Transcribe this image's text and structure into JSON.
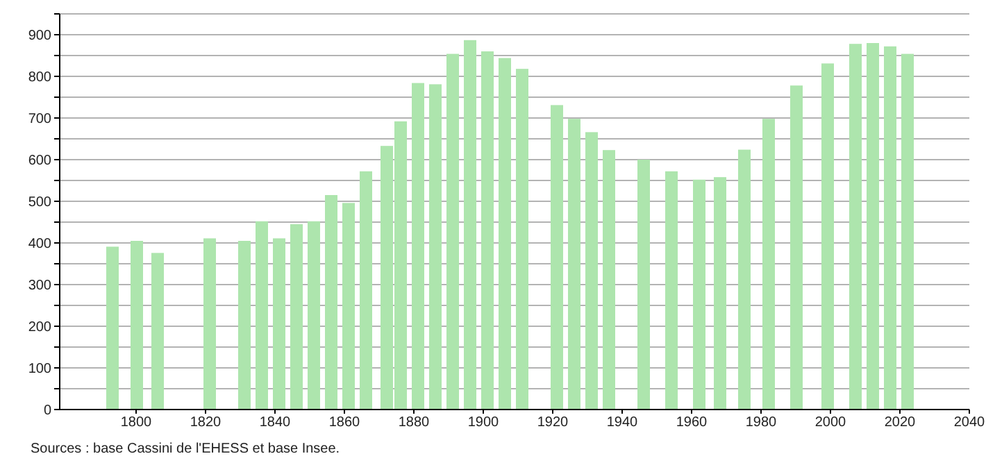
{
  "chart_data": {
    "type": "bar",
    "x": [
      1793,
      1800,
      1806,
      1821,
      1831,
      1836,
      1841,
      1846,
      1851,
      1856,
      1861,
      1866,
      1872,
      1876,
      1881,
      1886,
      1891,
      1896,
      1901,
      1906,
      1911,
      1921,
      1926,
      1931,
      1936,
      1946,
      1954,
      1962,
      1968,
      1975,
      1982,
      1990,
      1999,
      2007,
      2012,
      2017,
      2022
    ],
    "values": [
      391,
      405,
      376,
      411,
      405,
      452,
      411,
      445,
      452,
      515,
      496,
      572,
      633,
      692,
      784,
      781,
      854,
      887,
      860,
      844,
      818,
      731,
      698,
      666,
      623,
      600,
      572,
      552,
      558,
      624,
      698,
      778,
      831,
      878,
      880,
      872,
      854
    ],
    "color": "#ade5ad",
    "xlim": [
      1778,
      2040
    ],
    "xticks": [
      1800,
      1820,
      1840,
      1860,
      1880,
      1900,
      1920,
      1940,
      1960,
      1980,
      2000,
      2020,
      2040
    ],
    "ylim": [
      0,
      950
    ],
    "yticks": [
      0,
      {
        "value": 50,
        "label": null
      },
      100,
      {
        "value": 150,
        "label": null
      },
      200,
      {
        "value": 250,
        "label": null
      },
      300,
      {
        "value": 350,
        "label": null
      },
      400,
      {
        "value": 450,
        "label": null
      },
      500,
      {
        "value": 550,
        "label": null
      },
      600,
      {
        "value": 650,
        "label": null
      },
      700,
      {
        "value": 750,
        "label": null
      },
      800,
      {
        "value": 850,
        "label": null
      },
      900,
      {
        "value": 950,
        "label": null
      }
    ],
    "grid": "y",
    "annotations": [
      "Sources : base Cassini de l'EHESS et base Insee."
    ]
  }
}
